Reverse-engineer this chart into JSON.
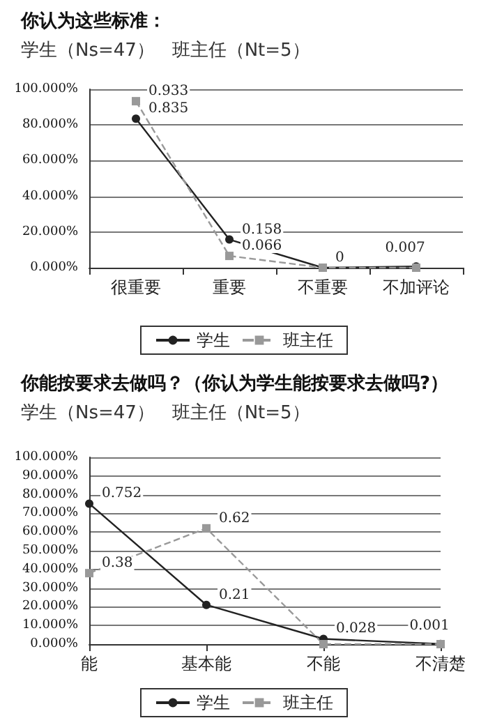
{
  "chart_data": [
    {
      "type": "line",
      "title": "你认为这些标准：",
      "subtitle": "学生（Ns=47）   班主任（Nt=5）",
      "categories": [
        "很重要",
        "重要",
        "不重要",
        "不加评论"
      ],
      "series": [
        {
          "name": "学生",
          "color": "#222222",
          "marker": "circle",
          "line_style": "solid",
          "values": [
            0.835,
            0.158,
            0,
            0.007
          ],
          "value_labels": [
            "0.835",
            "0.158",
            "0",
            "0.007"
          ]
        },
        {
          "name": "班主任",
          "color": "#999999",
          "marker": "square",
          "line_style": "dashed",
          "values": [
            0.933,
            0.066,
            0,
            0
          ],
          "value_labels": [
            "0.933",
            "0.066",
            null,
            null
          ]
        }
      ],
      "ylim": [
        0,
        1
      ],
      "yticks": [
        {
          "value": 0,
          "label": "0.000%"
        },
        {
          "value": 0.2,
          "label": "20.000%"
        },
        {
          "value": 0.4,
          "label": "40.000%"
        },
        {
          "value": 0.6,
          "label": "60.000%"
        },
        {
          "value": 0.8,
          "label": "80.000%"
        },
        {
          "value": 1,
          "label": "100.000%"
        }
      ],
      "grid": "y",
      "legend": "bottom"
    },
    {
      "type": "line",
      "title": "你能按要求去做吗？（你认为学生能按要求去做吗?）",
      "subtitle": "学生（Ns=47）   班主任（Nt=5）",
      "categories": [
        "能",
        "基本能",
        "不能",
        "不清楚"
      ],
      "series": [
        {
          "name": "学生",
          "color": "#222222",
          "marker": "circle",
          "line_style": "solid",
          "values": [
            0.752,
            0.21,
            0.028,
            0.001
          ],
          "value_labels": [
            "0.752",
            "0.21",
            "0.028",
            "0.001"
          ]
        },
        {
          "name": "班主任",
          "color": "#999999",
          "marker": "square",
          "line_style": "dashed",
          "values": [
            0.38,
            0.62,
            0,
            0
          ],
          "value_labels": [
            "0.38",
            "0.62",
            null,
            null
          ]
        }
      ],
      "ylim": [
        0,
        1
      ],
      "yticks": [
        {
          "value": 0,
          "label": "0.000%"
        },
        {
          "value": 0.1,
          "label": "10.000%"
        },
        {
          "value": 0.2,
          "label": "20.000%"
        },
        {
          "value": 0.3,
          "label": "30.000%"
        },
        {
          "value": 0.4,
          "label": "40.000%"
        },
        {
          "value": 0.5,
          "label": "50.000%"
        },
        {
          "value": 0.6,
          "label": "60.000%"
        },
        {
          "value": 0.7,
          "label": "70.000%"
        },
        {
          "value": 0.8,
          "label": "80.000%"
        },
        {
          "value": 0.9,
          "label": "90.000%"
        },
        {
          "value": 1,
          "label": "100.000%"
        }
      ],
      "grid": "y",
      "legend": "bottom"
    }
  ]
}
